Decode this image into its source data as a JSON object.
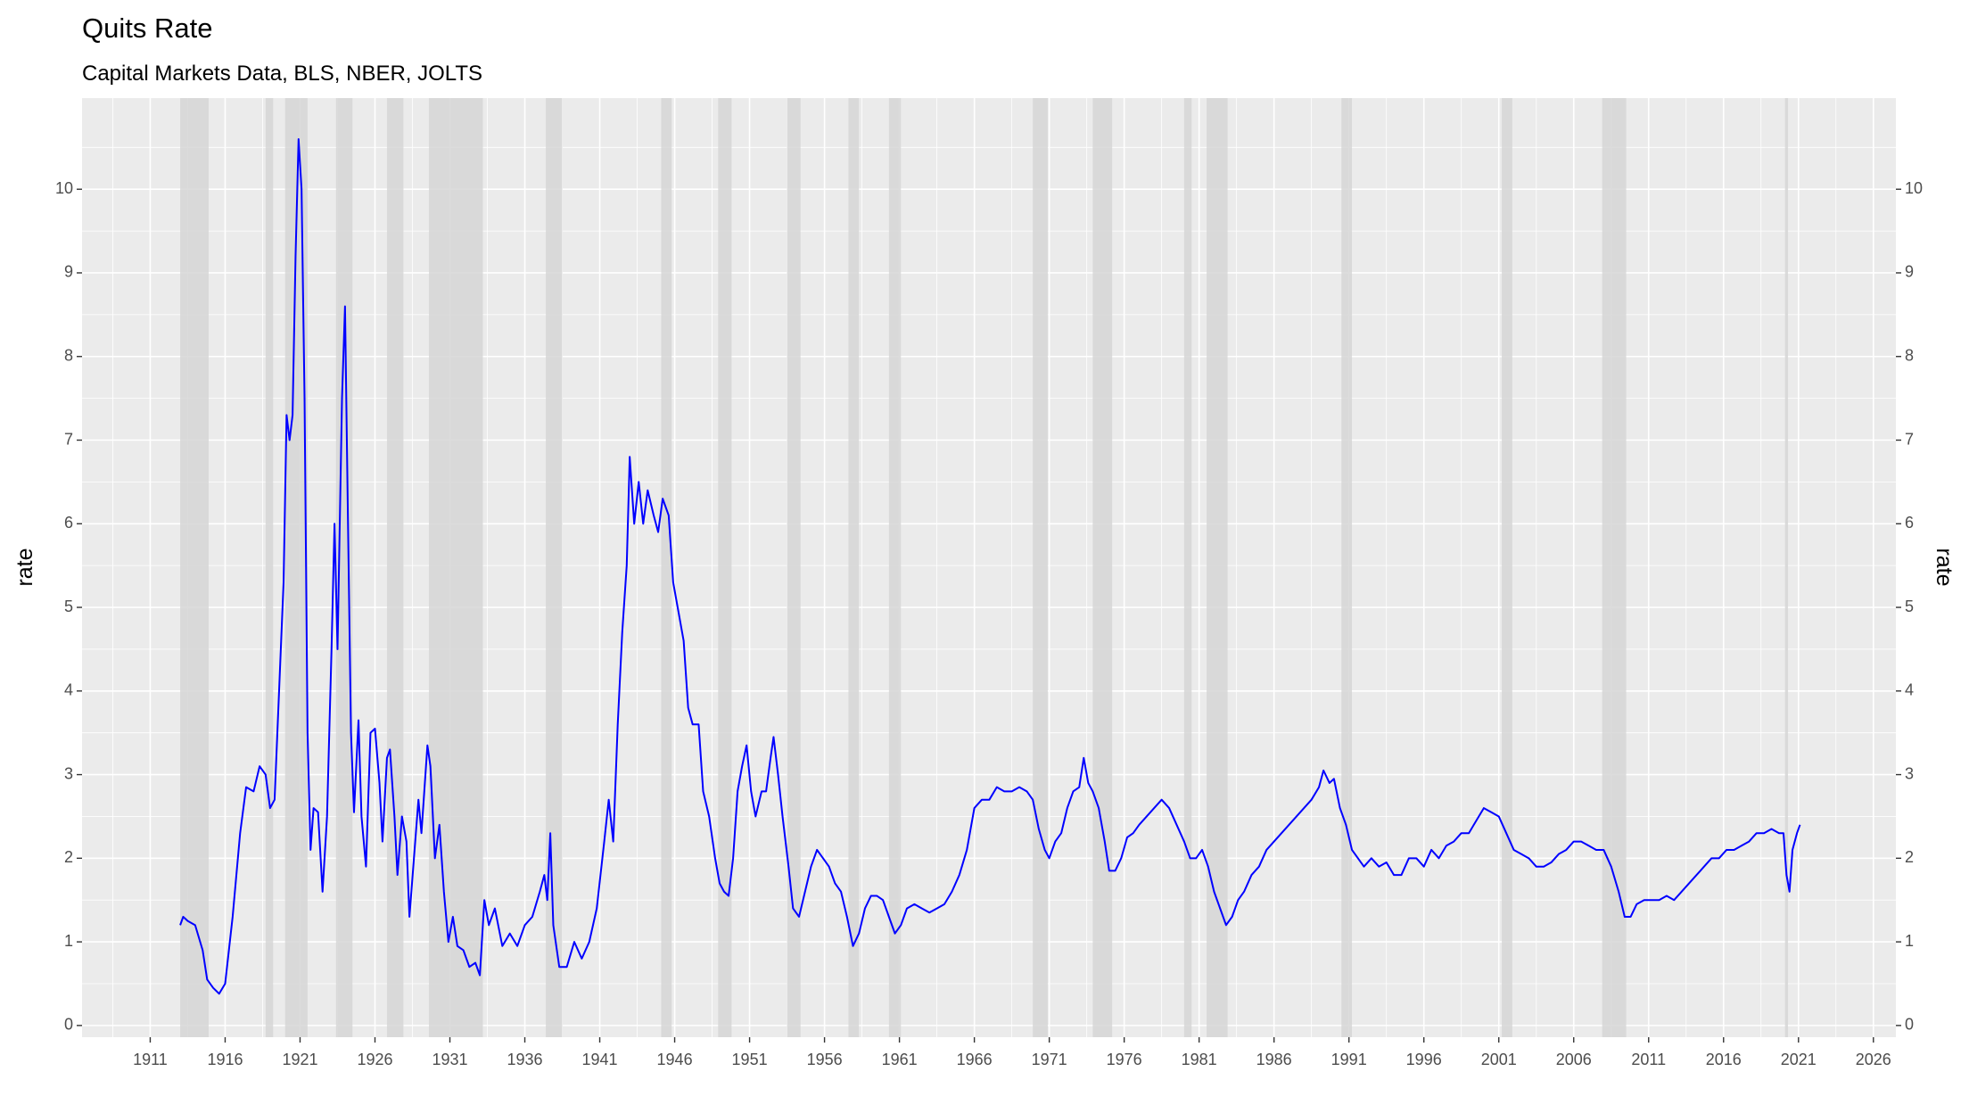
{
  "chart_data": {
    "type": "line",
    "title": "Quits Rate",
    "subtitle": "Capital Markets Data, BLS, NBER, JOLTS",
    "y_label": "rate",
    "color": "#0000ff",
    "recession_color": "#d6d6d6",
    "grid": true,
    "xlim": [
      1906.45,
      2027.5
    ],
    "ylim": [
      -0.14,
      11.09
    ],
    "xticks": [
      1911,
      1916,
      1921,
      1926,
      1931,
      1936,
      1941,
      1946,
      1951,
      1956,
      1961,
      1966,
      1971,
      1976,
      1981,
      1986,
      1991,
      1996,
      2001,
      2006,
      2011,
      2016,
      2021,
      2026
    ],
    "yticks": [
      0,
      1,
      2,
      3,
      4,
      5,
      6,
      7,
      8,
      9,
      10
    ],
    "recessions": [
      [
        1913.0,
        1914.9
      ],
      [
        1918.7,
        1919.2
      ],
      [
        1920.0,
        1921.5
      ],
      [
        1923.4,
        1924.5
      ],
      [
        1926.8,
        1927.9
      ],
      [
        1929.6,
        1933.2
      ],
      [
        1937.4,
        1938.5
      ],
      [
        1945.1,
        1945.8
      ],
      [
        1948.9,
        1949.8
      ],
      [
        1953.5,
        1954.4
      ],
      [
        1957.6,
        1958.3
      ],
      [
        1960.3,
        1961.1
      ],
      [
        1969.9,
        1970.9
      ],
      [
        1973.9,
        1975.2
      ],
      [
        1980.0,
        1980.5
      ],
      [
        1981.5,
        1982.9
      ],
      [
        1990.5,
        1991.2
      ],
      [
        2001.2,
        2001.9
      ],
      [
        2007.9,
        2009.5
      ],
      [
        2020.1,
        2020.3
      ]
    ],
    "x": [
      1913.0,
      1913.2,
      1913.5,
      1914.0,
      1914.5,
      1914.8,
      1915.2,
      1915.6,
      1916.0,
      1916.5,
      1917.0,
      1917.4,
      1917.9,
      1918.3,
      1918.7,
      1919.0,
      1919.3,
      1919.6,
      1919.9,
      1920.1,
      1920.3,
      1920.5,
      1920.7,
      1920.9,
      1921.1,
      1921.3,
      1921.5,
      1921.7,
      1921.9,
      1922.2,
      1922.5,
      1922.8,
      1923.1,
      1923.3,
      1923.5,
      1923.8,
      1924.0,
      1924.2,
      1924.4,
      1924.6,
      1924.9,
      1925.1,
      1925.4,
      1925.7,
      1926.0,
      1926.3,
      1926.5,
      1926.8,
      1927.0,
      1927.3,
      1927.5,
      1927.8,
      1928.1,
      1928.3,
      1928.6,
      1928.9,
      1929.1,
      1929.5,
      1929.7,
      1930.0,
      1930.3,
      1930.6,
      1930.9,
      1931.2,
      1931.5,
      1931.9,
      1932.3,
      1932.7,
      1933.0,
      1933.3,
      1933.6,
      1934.0,
      1934.5,
      1935.0,
      1935.5,
      1936.0,
      1936.5,
      1937.0,
      1937.3,
      1937.5,
      1937.7,
      1937.9,
      1938.3,
      1938.8,
      1939.3,
      1939.8,
      1940.3,
      1940.8,
      1941.3,
      1941.6,
      1941.9,
      1942.2,
      1942.5,
      1942.8,
      1943.0,
      1943.3,
      1943.6,
      1943.9,
      1944.2,
      1944.6,
      1944.9,
      1945.2,
      1945.6,
      1945.9,
      1946.2,
      1946.6,
      1946.9,
      1947.2,
      1947.6,
      1947.9,
      1948.3,
      1948.7,
      1949.0,
      1949.3,
      1949.6,
      1949.9,
      1950.2,
      1950.5,
      1950.8,
      1951.1,
      1951.4,
      1951.8,
      1952.1,
      1952.4,
      1952.6,
      1952.9,
      1953.2,
      1953.6,
      1953.9,
      1954.3,
      1954.7,
      1955.1,
      1955.5,
      1955.9,
      1956.3,
      1956.7,
      1957.1,
      1957.5,
      1957.9,
      1958.3,
      1958.7,
      1959.1,
      1959.5,
      1959.9,
      1960.3,
      1960.7,
      1961.1,
      1961.5,
      1962.0,
      1962.5,
      1963.0,
      1963.5,
      1964.0,
      1964.5,
      1965.0,
      1965.5,
      1966.0,
      1966.5,
      1967.0,
      1967.5,
      1968.0,
      1968.5,
      1969.0,
      1969.5,
      1969.9,
      1970.3,
      1970.7,
      1971.0,
      1971.4,
      1971.8,
      1972.2,
      1972.6,
      1973.0,
      1973.3,
      1973.6,
      1973.9,
      1974.3,
      1974.7,
      1975.0,
      1975.4,
      1975.8,
      1976.2,
      1976.6,
      1977.0,
      1977.5,
      1978.0,
      1978.5,
      1979.0,
      1979.5,
      1980.0,
      1980.4,
      1980.8,
      1981.2,
      1981.6,
      1982.0,
      1982.4,
      1982.8,
      1983.2,
      1983.6,
      1984.0,
      1984.5,
      1985.0,
      1985.5,
      1986.0,
      1986.5,
      1987.0,
      1987.5,
      1988.0,
      1988.5,
      1989.0,
      1989.3,
      1989.7,
      1990.0,
      1990.4,
      1990.8,
      1991.2,
      1991.6,
      1992.0,
      1992.5,
      1993.0,
      1993.5,
      1994.0,
      1994.5,
      1995.0,
      1995.5,
      1996.0,
      1996.5,
      1997.0,
      1997.5,
      1998.0,
      1998.5,
      1999.0,
      1999.5,
      2000.0,
      2000.5,
      2001.0,
      2001.5,
      2002.0,
      2002.5,
      2003.0,
      2003.5,
      2004.0,
      2004.5,
      2005.0,
      2005.5,
      2006.0,
      2006.5,
      2007.0,
      2007.5,
      2008.0,
      2008.5,
      2009.0,
      2009.4,
      2009.8,
      2010.2,
      2010.7,
      2011.2,
      2011.7,
      2012.2,
      2012.7,
      2013.2,
      2013.7,
      2014.2,
      2014.7,
      2015.2,
      2015.7,
      2016.2,
      2016.7,
      2017.2,
      2017.7,
      2018.2,
      2018.7,
      2019.2,
      2019.7,
      2020.0,
      2020.2,
      2020.4,
      2020.6,
      2020.9,
      2021.1
    ],
    "values": [
      1.2,
      1.3,
      1.25,
      1.2,
      0.9,
      0.55,
      0.45,
      0.38,
      0.5,
      1.3,
      2.3,
      2.85,
      2.8,
      3.1,
      3.0,
      2.6,
      2.7,
      4.0,
      5.3,
      7.3,
      7.0,
      7.3,
      9.2,
      10.6,
      10.0,
      7.5,
      3.5,
      2.1,
      2.6,
      2.55,
      1.6,
      2.5,
      4.5,
      6.0,
      4.5,
      7.5,
      8.6,
      6.0,
      3.5,
      2.55,
      3.65,
      2.5,
      1.9,
      3.5,
      3.55,
      2.9,
      2.2,
      3.2,
      3.3,
      2.5,
      1.8,
      2.5,
      2.2,
      1.3,
      2.0,
      2.7,
      2.3,
      3.35,
      3.1,
      2.0,
      2.4,
      1.6,
      1.0,
      1.3,
      0.95,
      0.9,
      0.7,
      0.75,
      0.6,
      1.5,
      1.2,
      1.4,
      0.95,
      1.1,
      0.95,
      1.2,
      1.3,
      1.6,
      1.8,
      1.5,
      2.3,
      1.2,
      0.7,
      0.7,
      1.0,
      0.8,
      1.0,
      1.4,
      2.2,
      2.7,
      2.2,
      3.6,
      4.7,
      5.5,
      6.8,
      6.0,
      6.5,
      6.0,
      6.4,
      6.1,
      5.9,
      6.3,
      6.1,
      5.3,
      5.0,
      4.6,
      3.8,
      3.6,
      3.6,
      2.8,
      2.5,
      2.0,
      1.7,
      1.6,
      1.55,
      2.0,
      2.8,
      3.1,
      3.35,
      2.8,
      2.5,
      2.8,
      2.8,
      3.2,
      3.45,
      3.0,
      2.5,
      1.9,
      1.4,
      1.3,
      1.6,
      1.9,
      2.1,
      2.0,
      1.9,
      1.7,
      1.6,
      1.3,
      0.95,
      1.1,
      1.4,
      1.55,
      1.55,
      1.5,
      1.3,
      1.1,
      1.2,
      1.4,
      1.45,
      1.4,
      1.35,
      1.4,
      1.45,
      1.6,
      1.8,
      2.1,
      2.6,
      2.7,
      2.7,
      2.85,
      2.8,
      2.8,
      2.85,
      2.8,
      2.7,
      2.35,
      2.1,
      2.0,
      2.2,
      2.3,
      2.6,
      2.8,
      2.85,
      3.2,
      2.9,
      2.8,
      2.6,
      2.2,
      1.85,
      1.85,
      2.0,
      2.25,
      2.3,
      2.4,
      2.5,
      2.6,
      2.7,
      2.6,
      2.4,
      2.2,
      2.0,
      2.0,
      2.1,
      1.9,
      1.6,
      1.4,
      1.2,
      1.3,
      1.5,
      1.6,
      1.8,
      1.9,
      2.1,
      2.2,
      2.3,
      2.4,
      2.5,
      2.6,
      2.7,
      2.85,
      3.05,
      2.9,
      2.95,
      2.6,
      2.4,
      2.1,
      2.0,
      1.9,
      2.0,
      1.9,
      1.95,
      1.8,
      1.8,
      2.0,
      2.0,
      1.9,
      2.1,
      2.0,
      2.15,
      2.2,
      2.3,
      2.3,
      2.45,
      2.6,
      2.55,
      2.5,
      2.3,
      2.1,
      2.05,
      2.0,
      1.9,
      1.9,
      1.95,
      2.05,
      2.1,
      2.2,
      2.2,
      2.15,
      2.1,
      2.1,
      1.9,
      1.6,
      1.3,
      1.3,
      1.45,
      1.5,
      1.5,
      1.5,
      1.55,
      1.5,
      1.6,
      1.7,
      1.8,
      1.9,
      2.0,
      2.0,
      2.1,
      2.1,
      2.15,
      2.2,
      2.3,
      2.3,
      2.35,
      2.3,
      2.3,
      1.8,
      1.6,
      2.1,
      2.3,
      2.4
    ]
  }
}
